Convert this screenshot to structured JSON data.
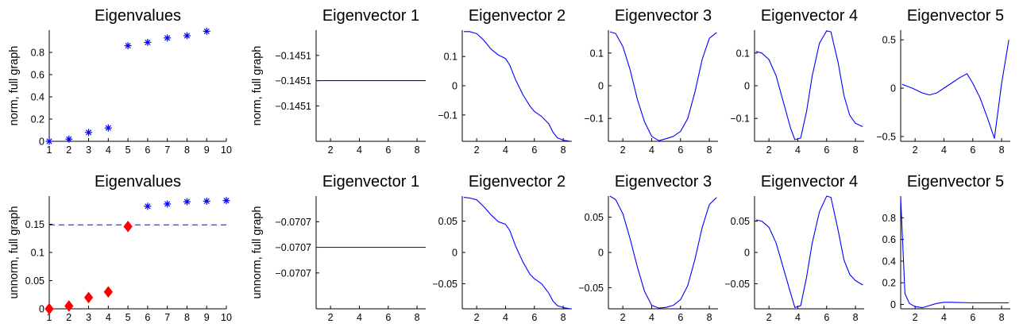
{
  "colors": {
    "series": "#0000ff",
    "highlight": "#ff0000",
    "axis": "#000000"
  },
  "chart_data": [
    {
      "id": "r1c1",
      "type": "scatter",
      "title": "Eigenvalues",
      "ylabel": "norm, full graph",
      "xlim": [
        1,
        10
      ],
      "ylim": [
        0,
        1.0
      ],
      "xticks": [
        1,
        2,
        3,
        4,
        5,
        6,
        7,
        8,
        9,
        10
      ],
      "yticks": [
        {
          "v": 0,
          "t": "0"
        },
        {
          "v": 0.2,
          "t": "0.2"
        },
        {
          "v": 0.4,
          "t": "0.4"
        },
        {
          "v": 0.6,
          "t": "0.6"
        },
        {
          "v": 0.8,
          "t": "0.8"
        }
      ],
      "series": [
        {
          "marker": "star",
          "color": "#0000ff",
          "x": [
            1,
            2,
            3,
            4,
            5,
            6,
            7,
            8,
            9
          ],
          "y": [
            0.0,
            0.02,
            0.08,
            0.12,
            0.86,
            0.89,
            0.93,
            0.95,
            0.99
          ]
        }
      ]
    },
    {
      "id": "r1c2",
      "type": "line",
      "title": "Eigenvector 1",
      "ylabel": "norm, full graph",
      "xlim": [
        1,
        8.6
      ],
      "ylim": [
        -1.2,
        1.0
      ],
      "xticks": [
        2,
        4,
        6,
        8
      ],
      "yticks": [
        {
          "v": 0.5,
          "t": "−0.1451"
        },
        {
          "v": 0,
          "t": "−0.1451"
        },
        {
          "v": -0.5,
          "t": "−0.1451"
        }
      ],
      "series": [
        {
          "color": "#0000ff",
          "x": [
            1,
            8.6
          ],
          "y": [
            0,
            0
          ]
        }
      ]
    },
    {
      "id": "r1c3",
      "type": "line",
      "title": "Eigenvector 2",
      "ylabel": "",
      "xlim": [
        1,
        8.6
      ],
      "ylim": [
        -0.19,
        0.19
      ],
      "xticks": [
        2,
        4,
        6,
        8
      ],
      "yticks": [
        {
          "v": 0.1,
          "t": "0.1"
        },
        {
          "v": 0,
          "t": "0"
        },
        {
          "v": -0.1,
          "t": "−0.1"
        }
      ],
      "series": [
        {
          "color": "#0000ff",
          "x": [
            1.1,
            1.5,
            2.0,
            2.5,
            3.0,
            3.5,
            4.0,
            4.3,
            4.7,
            5.2,
            5.7,
            6.0,
            6.5,
            7.0,
            7.3,
            7.6,
            8.0,
            8.5
          ],
          "y": [
            0.185,
            0.185,
            0.178,
            0.155,
            0.125,
            0.105,
            0.093,
            0.07,
            0.02,
            -0.03,
            -0.07,
            -0.088,
            -0.105,
            -0.13,
            -0.16,
            -0.178,
            -0.186,
            -0.19
          ]
        }
      ]
    },
    {
      "id": "r1c4",
      "type": "line",
      "title": "Eigenvector 3",
      "ylabel": "",
      "xlim": [
        1,
        8.6
      ],
      "ylim": [
        -0.17,
        0.17
      ],
      "xticks": [
        2,
        4,
        6,
        8
      ],
      "yticks": [
        {
          "v": 0.1,
          "t": "0.1"
        },
        {
          "v": 0,
          "t": "0"
        },
        {
          "v": -0.1,
          "t": "−0.1"
        }
      ],
      "series": [
        {
          "color": "#0000ff",
          "x": [
            1.1,
            1.5,
            2.0,
            2.5,
            3.0,
            3.5,
            4.0,
            4.5,
            5.0,
            5.5,
            6.0,
            6.5,
            7.0,
            7.5,
            8.0,
            8.5
          ],
          "y": [
            0.165,
            0.16,
            0.12,
            0.05,
            -0.04,
            -0.11,
            -0.155,
            -0.168,
            -0.162,
            -0.155,
            -0.14,
            -0.1,
            -0.02,
            0.08,
            0.145,
            0.163
          ]
        }
      ]
    },
    {
      "id": "r1c5",
      "type": "line",
      "title": "Eigenvector 4",
      "ylabel": "",
      "xlim": [
        1,
        8.6
      ],
      "ylim": [
        -0.17,
        0.17
      ],
      "xticks": [
        2,
        4,
        6,
        8
      ],
      "yticks": [
        {
          "v": 0.1,
          "t": "0.1"
        },
        {
          "v": 0,
          "t": "0"
        },
        {
          "v": -0.1,
          "t": "−0.1"
        }
      ],
      "series": [
        {
          "color": "#0000ff",
          "x": [
            1.1,
            1.5,
            2.0,
            2.5,
            3.0,
            3.5,
            3.8,
            4.2,
            4.6,
            5.0,
            5.5,
            6.0,
            6.3,
            6.8,
            7.2,
            7.6,
            8.0,
            8.5
          ],
          "y": [
            0.105,
            0.1,
            0.08,
            0.03,
            -0.05,
            -0.13,
            -0.165,
            -0.16,
            -0.08,
            0.03,
            0.13,
            0.168,
            0.165,
            0.07,
            -0.03,
            -0.09,
            -0.115,
            -0.125
          ]
        }
      ]
    },
    {
      "id": "r1c6",
      "type": "line",
      "title": "Eigenvector 5",
      "ylabel": "",
      "xlim": [
        1,
        8.6
      ],
      "ylim": [
        -0.55,
        0.6
      ],
      "xticks": [
        2,
        4,
        6,
        8
      ],
      "yticks": [
        {
          "v": 0.5,
          "t": "0.5"
        },
        {
          "v": 0,
          "t": "0"
        },
        {
          "v": -0.5,
          "t": "−0.5"
        }
      ],
      "series": [
        {
          "color": "#0000ff",
          "x": [
            1.1,
            1.8,
            2.5,
            3.0,
            3.5,
            4.0,
            4.5,
            5.0,
            5.6,
            6.0,
            6.5,
            7.0,
            7.5,
            8.0,
            8.5
          ],
          "y": [
            0.04,
            0.0,
            -0.05,
            -0.07,
            -0.05,
            0.0,
            0.05,
            0.1,
            0.15,
            0.05,
            -0.1,
            -0.3,
            -0.52,
            0.05,
            0.5
          ]
        }
      ]
    },
    {
      "id": "r2c1",
      "type": "scatter",
      "title": "Eigenvalues",
      "ylabel": "unnorm, full graph",
      "xlim": [
        1,
        10
      ],
      "ylim": [
        0,
        0.2
      ],
      "xticks": [
        1,
        2,
        3,
        4,
        5,
        6,
        7,
        8,
        9,
        10
      ],
      "yticks": [
        {
          "v": 0,
          "t": "0"
        },
        {
          "v": 0.05,
          "t": "0.05"
        },
        {
          "v": 0.1,
          "t": "0.1"
        },
        {
          "v": 0.15,
          "t": "0.15"
        }
      ],
      "hline": {
        "y": 0.149,
        "color": "#0000ff",
        "dashed": true
      },
      "series": [
        {
          "marker": "diamond",
          "color": "#ff0000",
          "x": [
            1,
            2,
            3,
            4,
            5
          ],
          "y": [
            0.0,
            0.005,
            0.02,
            0.03,
            0.146
          ]
        },
        {
          "marker": "star",
          "color": "#0000ff",
          "x": [
            6,
            7,
            8,
            9,
            10
          ],
          "y": [
            0.182,
            0.186,
            0.19,
            0.191,
            0.192
          ]
        }
      ]
    },
    {
      "id": "r2c2",
      "type": "line",
      "title": "Eigenvector 1",
      "ylabel": "unnorm, full graph",
      "xlim": [
        1,
        8.6
      ],
      "ylim": [
        -1.2,
        1.0
      ],
      "xticks": [
        2,
        4,
        6,
        8
      ],
      "yticks": [
        {
          "v": 0.5,
          "t": "−0.0707"
        },
        {
          "v": 0,
          "t": "−0.0707"
        },
        {
          "v": -0.5,
          "t": "−0.0707"
        }
      ],
      "series": [
        {
          "color": "#0000ff",
          "x": [
            1,
            8.6
          ],
          "y": [
            0,
            0
          ]
        }
      ]
    },
    {
      "id": "r2c3",
      "type": "line",
      "title": "Eigenvector 2",
      "ylabel": "",
      "xlim": [
        1,
        8.6
      ],
      "ylim": [
        -0.09,
        0.09
      ],
      "xticks": [
        2,
        4,
        6,
        8
      ],
      "yticks": [
        {
          "v": 0.05,
          "t": "0.05"
        },
        {
          "v": 0,
          "t": "0"
        },
        {
          "v": -0.05,
          "t": "−0.05"
        }
      ],
      "series": [
        {
          "color": "#0000ff",
          "x": [
            1.1,
            1.5,
            2.0,
            2.5,
            3.0,
            3.5,
            4.0,
            4.3,
            4.7,
            5.2,
            5.7,
            6.0,
            6.5,
            7.0,
            7.3,
            7.6,
            8.0,
            8.5
          ],
          "y": [
            0.088,
            0.087,
            0.084,
            0.073,
            0.06,
            0.049,
            0.045,
            0.035,
            0.01,
            -0.015,
            -0.035,
            -0.042,
            -0.05,
            -0.065,
            -0.078,
            -0.085,
            -0.088,
            -0.09
          ]
        }
      ]
    },
    {
      "id": "r2c4",
      "type": "line",
      "title": "Eigenvector 3",
      "ylabel": "",
      "xlim": [
        1,
        8.6
      ],
      "ylim": [
        -0.08,
        0.08
      ],
      "xticks": [
        2,
        4,
        6,
        8
      ],
      "yticks": [
        {
          "v": 0.05,
          "t": "0.05"
        },
        {
          "v": 0,
          "t": "0"
        },
        {
          "v": -0.05,
          "t": "−0.05"
        }
      ],
      "series": [
        {
          "color": "#0000ff",
          "x": [
            1.1,
            1.5,
            2.0,
            2.5,
            3.0,
            3.5,
            4.0,
            4.5,
            5.0,
            5.5,
            6.0,
            6.5,
            7.0,
            7.5,
            8.0,
            8.5
          ],
          "y": [
            0.08,
            0.075,
            0.055,
            0.02,
            -0.02,
            -0.055,
            -0.075,
            -0.079,
            -0.078,
            -0.075,
            -0.067,
            -0.047,
            -0.01,
            0.035,
            0.068,
            0.078
          ]
        }
      ]
    },
    {
      "id": "r2c5",
      "type": "line",
      "title": "Eigenvector 4",
      "ylabel": "",
      "xlim": [
        1,
        8.6
      ],
      "ylim": [
        -0.09,
        0.09
      ],
      "xticks": [
        2,
        4,
        6,
        8
      ],
      "yticks": [
        {
          "v": 0.05,
          "t": "0.05"
        },
        {
          "v": 0,
          "t": "0"
        },
        {
          "v": -0.05,
          "t": "−0.05"
        }
      ],
      "series": [
        {
          "color": "#0000ff",
          "x": [
            1.1,
            1.5,
            2.0,
            2.5,
            3.0,
            3.5,
            3.8,
            4.2,
            4.6,
            5.0,
            5.5,
            6.0,
            6.3,
            6.8,
            7.2,
            7.6,
            8.0,
            8.5
          ],
          "y": [
            0.052,
            0.05,
            0.04,
            0.015,
            -0.025,
            -0.065,
            -0.088,
            -0.085,
            -0.04,
            0.015,
            0.065,
            0.09,
            0.088,
            0.035,
            -0.012,
            -0.035,
            -0.045,
            -0.052
          ]
        }
      ]
    },
    {
      "id": "r2c6",
      "type": "line",
      "title": "Eigenvector 5",
      "ylabel": "",
      "xlim": [
        1,
        8.6
      ],
      "ylim": [
        -0.04,
        1.0
      ],
      "xticks": [
        2,
        4,
        6,
        8
      ],
      "yticks": [
        {
          "v": 0,
          "t": "0"
        },
        {
          "v": 0.2,
          "t": "0.2"
        },
        {
          "v": 0.4,
          "t": "0.4"
        },
        {
          "v": 0.6,
          "t": "0.6"
        },
        {
          "v": 0.8,
          "t": "0.8"
        }
      ],
      "series": [
        {
          "color": "#0000ff",
          "x": [
            1.0,
            1.3,
            1.6,
            2.0,
            2.5,
            3.0,
            3.5,
            4.0,
            4.5,
            5.0,
            6.0,
            7.0,
            8.0,
            8.5
          ],
          "y": [
            0.98,
            0.1,
            0.01,
            -0.02,
            -0.03,
            -0.01,
            0.01,
            0.02,
            0.02,
            0.018,
            0.015,
            0.015,
            0.015,
            0.015
          ]
        }
      ]
    }
  ]
}
